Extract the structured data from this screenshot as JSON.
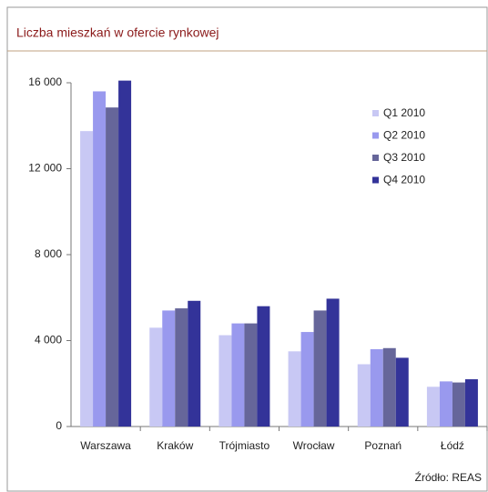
{
  "chart_data": {
    "type": "bar",
    "title": "Liczba mieszkań w ofercie rynkowej",
    "categories": [
      "Warszawa",
      "Kraków",
      "Trójmiasto",
      "Wrocław",
      "Poznań",
      "Łódź"
    ],
    "series": [
      {
        "name": "Q1 2010",
        "color": "#c8c8f4",
        "values": [
          13750,
          4600,
          4250,
          3500,
          2900,
          1850
        ]
      },
      {
        "name": "Q2 2010",
        "color": "#9999ee",
        "values": [
          15600,
          5400,
          4800,
          4400,
          3600,
          2100
        ]
      },
      {
        "name": "Q3 2010",
        "color": "#66669a",
        "values": [
          14850,
          5500,
          4800,
          5400,
          3650,
          2050
        ]
      },
      {
        "name": "Q4 2010",
        "color": "#333399",
        "values": [
          16100,
          5850,
          5600,
          5950,
          3200,
          2200
        ]
      }
    ],
    "ylim": [
      0,
      16000
    ],
    "yticks": [
      0,
      {
        "value": 4000,
        "label": "4 000"
      },
      {
        "value": 8000,
        "label": "8 000"
      },
      {
        "value": 12000,
        "label": "12 000"
      },
      {
        "value": 16000,
        "label": "16 000"
      }
    ],
    "legend": "top-right",
    "source": "Źródło: REAS"
  }
}
